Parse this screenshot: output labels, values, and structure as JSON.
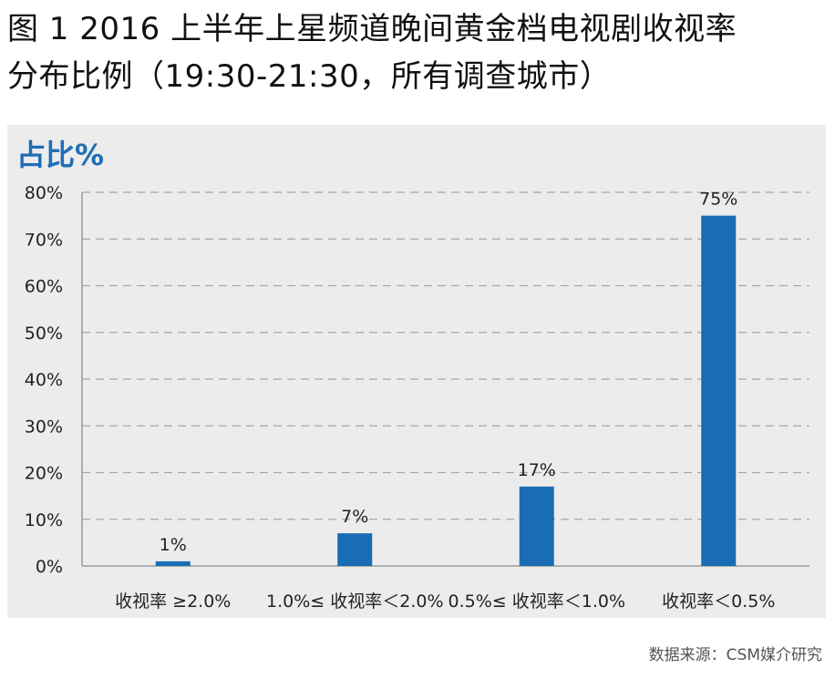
{
  "title_lines": [
    "图 1 2016 上半年上星频道晚间黄金档电视剧收视率",
    "分布比例（19:30-21:30，所有调查城市）"
  ],
  "unit_label": "占比%",
  "source": "数据来源：CSM媒介研究",
  "colors": {
    "bar": "#1a6db4",
    "panel": "#ececec",
    "unit": "#1f6eb5"
  },
  "chart_data": {
    "type": "bar",
    "categories": [
      "收视率 ≥2.0%",
      "1.0%≤ 收视率＜2.0%",
      "0.5%≤ 收视率＜1.0%",
      "收视率＜0.5%"
    ],
    "values": [
      1,
      7,
      17,
      75
    ],
    "data_labels": [
      "1%",
      "7%",
      "17%",
      "75%"
    ],
    "y_ticks": [
      "0%",
      "10%",
      "20%",
      "30%",
      "40%",
      "50%",
      "60%",
      "70%",
      "80%"
    ],
    "ylim": [
      0,
      80
    ],
    "grid": true
  }
}
